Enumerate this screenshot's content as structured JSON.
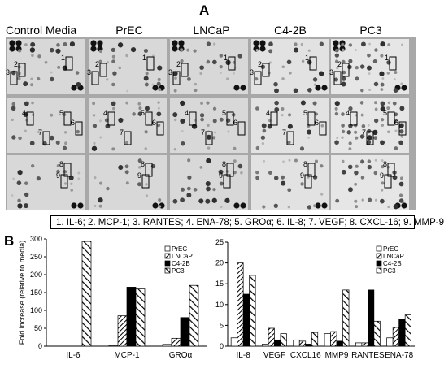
{
  "panel_a": {
    "letter": "A",
    "columns": [
      "Control Media",
      "PrEC",
      "LNCaP",
      "C4-2B",
      "PC3"
    ],
    "legend": "1. IL-6; 2. MCP-1; 3. RANTES; 4. ENA-78; 5. GROα; 6. IL-8; 7. VEGF; 8. CXCL-16; 9. MMP-9",
    "spot_labels": [
      "1",
      "2",
      "3",
      "4",
      "5",
      "6",
      "7",
      "8",
      "9"
    ]
  },
  "panel_b": {
    "letter": "B"
  },
  "colors": {
    "hatch": "#000000",
    "solid": "#000000",
    "background": "#ffffff",
    "array_bg": "#dcdcdc"
  },
  "chart_data": [
    {
      "type": "bar",
      "ylabel": "Fold increase (relative to media)",
      "ylim": [
        0,
        300
      ],
      "yticks": [
        0,
        50,
        100,
        150,
        200,
        250,
        300
      ],
      "categories": [
        "IL-6",
        "MCP-1",
        "GROα"
      ],
      "series": [
        {
          "name": "PrEC",
          "pattern": "open",
          "values": [
            0,
            2,
            5
          ]
        },
        {
          "name": "LNCaP",
          "pattern": "diag-dense",
          "values": [
            0,
            85,
            22
          ]
        },
        {
          "name": "C4-2B",
          "pattern": "solid",
          "values": [
            0,
            165,
            80
          ]
        },
        {
          "name": "PC3",
          "pattern": "diag-wide",
          "values": [
            293,
            160,
            170
          ]
        }
      ],
      "legend_position": "top-right"
    },
    {
      "type": "bar",
      "ylim": [
        0,
        25
      ],
      "yticks": [
        0,
        5,
        10,
        15,
        20,
        25
      ],
      "categories": [
        "IL-8",
        "VEGF",
        "CXCL16",
        "MMP9",
        "RANTES",
        "ENA-78"
      ],
      "series": [
        {
          "name": "PrEC",
          "pattern": "open",
          "values": [
            2,
            0.5,
            1.5,
            3,
            0.8,
            2
          ]
        },
        {
          "name": "LNCaP",
          "pattern": "diag-dense",
          "values": [
            20,
            4.3,
            1.2,
            3.5,
            0.8,
            4.5
          ]
        },
        {
          "name": "C4-2B",
          "pattern": "solid",
          "values": [
            12.5,
            1.5,
            0.5,
            1.2,
            13.5,
            6.5
          ]
        },
        {
          "name": "PC3",
          "pattern": "diag-wide",
          "values": [
            17,
            3,
            3.3,
            13.5,
            6,
            7.5
          ]
        }
      ],
      "legend_position": "top-right"
    }
  ]
}
